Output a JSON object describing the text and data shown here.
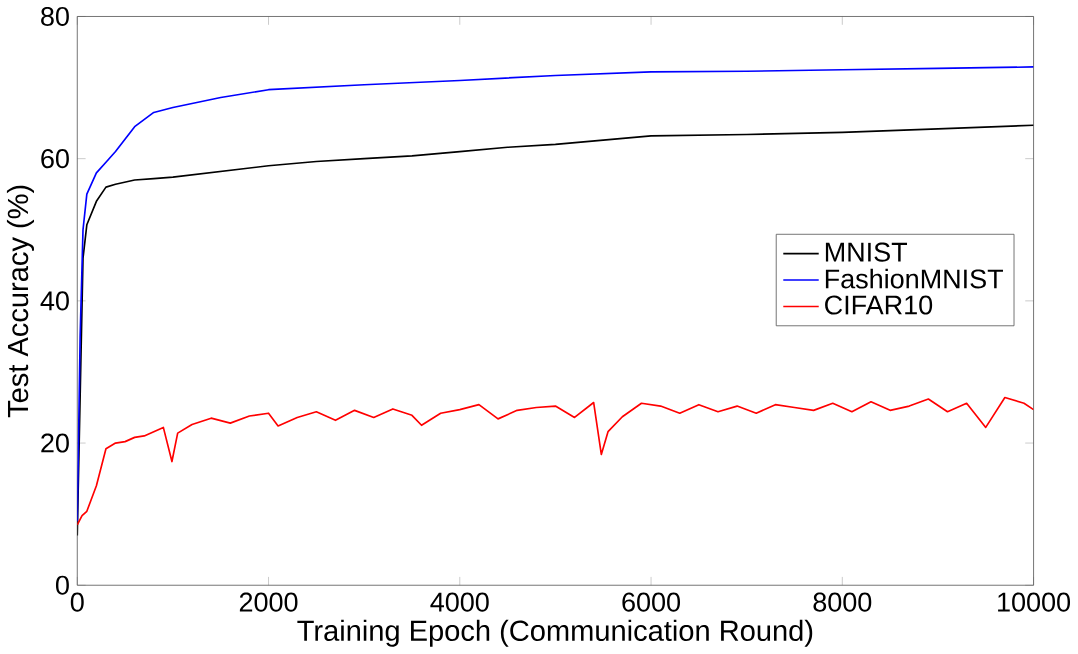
{
  "chart_data": {
    "type": "line",
    "xlabel": "Training Epoch (Communication Round)",
    "ylabel": "Test Accuracy (%)",
    "xlim": [
      0,
      10000
    ],
    "ylim": [
      0,
      80
    ],
    "xticks": [
      0,
      2000,
      4000,
      6000,
      8000,
      10000
    ],
    "yticks": [
      0,
      20,
      40,
      60,
      80
    ],
    "grid": false,
    "legend": "right",
    "marker": "none",
    "line_style": "solid",
    "series": [
      {
        "name": "MNIST",
        "color": "#000000",
        "x": [
          0,
          30,
          60,
          100,
          200,
          300,
          400,
          600,
          800,
          1000,
          1500,
          2000,
          2500,
          3000,
          3500,
          4000,
          4500,
          5000,
          5500,
          6000,
          7000,
          8000,
          9000,
          10000
        ],
        "values": [
          7,
          null,
          46,
          50.7,
          54,
          56,
          56.4,
          57,
          57.2,
          57.4,
          58.2,
          59,
          59.6,
          60,
          60.4,
          61,
          61.6,
          62,
          62.6,
          63.2,
          63.4,
          63.7,
          64.2,
          64.7
        ]
      },
      {
        "name": "FashionMNIST",
        "color": "#0000ff",
        "x": [
          0,
          30,
          60,
          100,
          200,
          300,
          400,
          600,
          800,
          1000,
          1500,
          2000,
          3000,
          4000,
          5000,
          6000,
          7000,
          8000,
          9000,
          10000
        ],
        "values": [
          9,
          35,
          50,
          55,
          58,
          59.5,
          61,
          64.5,
          66.5,
          67.2,
          68.6,
          69.7,
          70.4,
          71,
          71.7,
          72.2,
          72.3,
          72.5,
          72.7,
          72.9
        ]
      },
      {
        "name": "CIFAR10",
        "color": "#ff0000",
        "x": [
          0,
          50,
          100,
          200,
          300,
          400,
          500,
          600,
          700,
          800,
          900,
          990,
          1050,
          1200,
          1400,
          1600,
          1800,
          2000,
          2100,
          2300,
          2500,
          2700,
          2900,
          3100,
          3300,
          3500,
          3600,
          3800,
          4000,
          4200,
          4400,
          4600,
          4800,
          5000,
          5200,
          5400,
          5480,
          5550,
          5700,
          5900,
          6100,
          6300,
          6500,
          6700,
          6900,
          7100,
          7300,
          7500,
          7700,
          7900,
          8100,
          8300,
          8500,
          8700,
          8900,
          9100,
          9300,
          9500,
          9700,
          9900,
          10000
        ],
        "values": [
          8.5,
          9.8,
          10.4,
          14,
          19.2,
          20,
          20.2,
          20.8,
          21,
          21.6,
          22.2,
          17.4,
          21.4,
          22.6,
          23.5,
          22.8,
          23.8,
          24.2,
          22.4,
          23.6,
          24.4,
          23.2,
          24.6,
          23.6,
          24.8,
          23.9,
          22.5,
          24.2,
          24.7,
          25.4,
          23.4,
          24.6,
          25,
          25.2,
          23.6,
          25.7,
          18.4,
          21.6,
          23.7,
          25.6,
          25.2,
          24.2,
          25.4,
          24.4,
          25.2,
          24.2,
          25.4,
          25,
          24.6,
          25.6,
          24.4,
          25.8,
          24.6,
          25.2,
          26.2,
          24.4,
          25.6,
          22.2,
          26.4,
          25.6,
          24.7
        ]
      }
    ]
  }
}
